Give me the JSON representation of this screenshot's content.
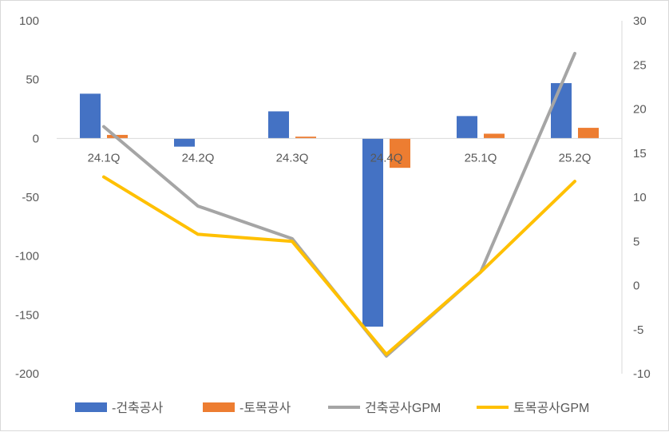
{
  "chart_data": {
    "type": "bar",
    "title": "",
    "categories": [
      "24.1Q",
      "24.2Q",
      "24.3Q",
      "24.4Q",
      "25.1Q",
      "25.2Q"
    ],
    "y_left": {
      "min": -200,
      "max": 100,
      "step": 50,
      "ticks": [
        "100",
        "50",
        "0",
        "-50",
        "-100",
        "-150",
        "-200"
      ]
    },
    "y_right": {
      "min": -10,
      "max": 30,
      "step": 5,
      "ticks": [
        "30",
        "25",
        "20",
        "15",
        "10",
        "5",
        "0",
        "-5",
        "-10"
      ]
    },
    "grid": false,
    "legend": "bottom",
    "series": [
      {
        "name": "-건축공사",
        "type": "bar",
        "axis": "left",
        "color": "#4472C4",
        "values": [
          38,
          -7,
          23,
          -160,
          19,
          47
        ]
      },
      {
        "name": "-토목공사",
        "type": "bar",
        "axis": "left",
        "color": "#ED7D31",
        "values": [
          3,
          0,
          1.5,
          -25,
          4,
          9
        ]
      },
      {
        "name": "건축공사GPM",
        "type": "line",
        "axis": "right",
        "color": "#A5A5A5",
        "values": [
          18,
          9,
          5.3,
          -8,
          1.5,
          26.3
        ]
      },
      {
        "name": "토목공사GPM",
        "type": "line",
        "axis": "right",
        "color": "#FFC000",
        "values": [
          12.3,
          5.8,
          5,
          -7.8,
          1.5,
          11.8
        ]
      }
    ]
  }
}
